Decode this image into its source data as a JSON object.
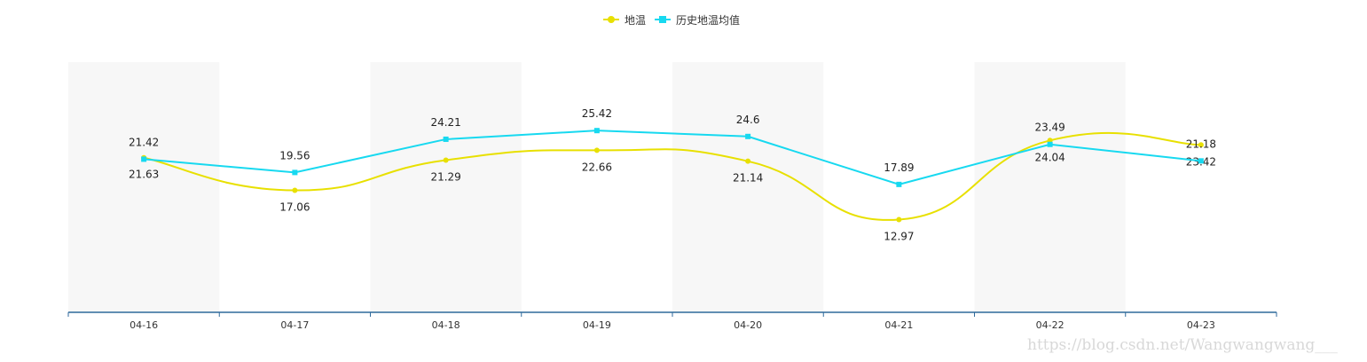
{
  "chart_data": {
    "type": "line",
    "categories": [
      "04-16",
      "04-17",
      "04-18",
      "04-19",
      "04-20",
      "04-21",
      "04-22",
      "04-23"
    ],
    "series": [
      {
        "name": "地温",
        "values": [
          21.63,
          17.06,
          21.29,
          22.66,
          21.14,
          12.97,
          24.04,
          23.42
        ],
        "color": "#e8e000",
        "marker": "circle",
        "smooth": true,
        "label_position": "below"
      },
      {
        "name": "历史地温均值",
        "values": [
          21.42,
          19.56,
          24.21,
          25.42,
          24.6,
          17.89,
          23.49,
          21.18
        ],
        "color": "#17d9f0",
        "marker": "square",
        "smooth": false,
        "label_position": "above"
      }
    ],
    "ylim": [
      0,
      35
    ],
    "xlabel": "",
    "ylabel": "",
    "legend_position": "top-center",
    "banded_background": true,
    "band_color": "#f7f7f7",
    "axis_color": "#2f6a9c"
  },
  "watermark": "https://blog.csdn.net/Wangwangwang___"
}
